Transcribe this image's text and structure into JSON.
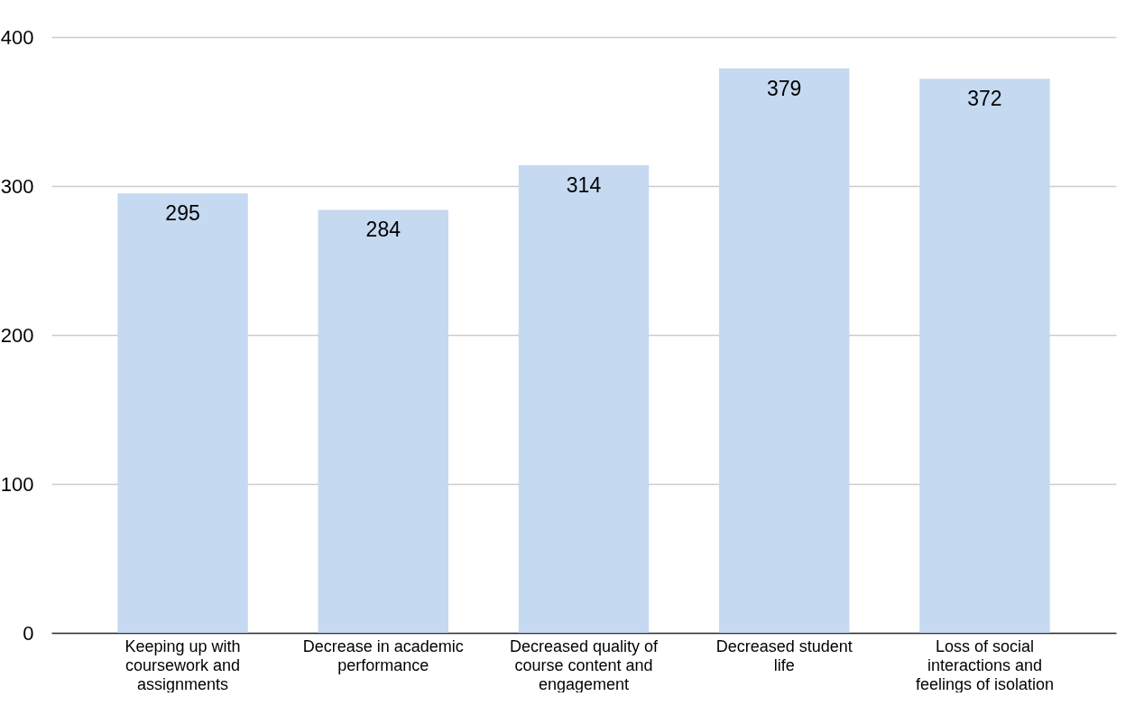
{
  "chart_data": {
    "type": "bar",
    "categories": [
      "Keeping up with coursework and assignments",
      "Decrease in academic performance",
      "Decreased quality of course content and engagement",
      "Decreased student life",
      "Loss of social interactions and feelings of isolation"
    ],
    "values": [
      295,
      284,
      314,
      379,
      372
    ],
    "color": "#c5d9f0",
    "ylim": [
      0,
      400
    ],
    "yticks": [
      0,
      100,
      200,
      300,
      400
    ],
    "grid": "y",
    "data_labels": true
  }
}
